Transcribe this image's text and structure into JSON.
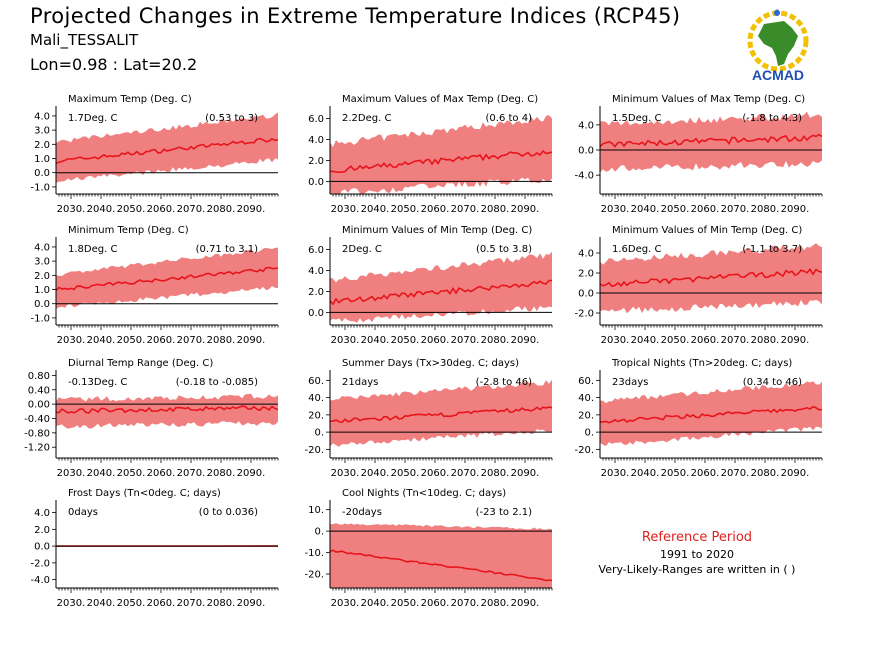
{
  "header": {
    "title": "Projected Changes in Extreme Temperature Indices (RCP45)",
    "station": "Mali_TESSALIT",
    "coords": "Lon=0.98 : Lat=20.2"
  },
  "logo": {
    "text": "ACMAD",
    "icon": "africa-map-logo"
  },
  "reference": {
    "title": "Reference Period",
    "years": "1991 to 2020",
    "note": "Very-Likely-Ranges are written in ( )"
  },
  "colors": {
    "band": "#f08080",
    "line": "#e8141c",
    "zero": "#000000",
    "ref": "#e0201c"
  },
  "x_ticks": [
    "2030.",
    "2040.",
    "2050.",
    "2060.",
    "2070.",
    "2080.",
    "2090."
  ],
  "chart_data": [
    {
      "type": "area",
      "title": "Maximum Temp (Deg. C)",
      "value_label": "1.7Deg. C",
      "range_label": "(0.53 to 3)",
      "yticks": [
        "4.0",
        "3.0",
        "2.0",
        "1.0",
        "0.0",
        "-1.0"
      ],
      "ylim": [
        -1.5,
        4.7
      ],
      "x": [
        2025,
        2099
      ],
      "mean": [
        0.8,
        2.4
      ],
      "lower": [
        -0.4,
        1.1
      ],
      "upper": [
        2.0,
        3.9
      ],
      "noise": 0.35
    },
    {
      "type": "area",
      "title": "Maximum Values of Max Temp (Deg. C)",
      "value_label": "2.2Deg. C",
      "range_label": "(0.6 to 4)",
      "yticks": [
        "6.0",
        "4.0",
        "2.0",
        "0.0"
      ],
      "ylim": [
        -1.2,
        7.2
      ],
      "x": [
        2025,
        2099
      ],
      "mean": [
        1.0,
        2.9
      ],
      "lower": [
        -0.8,
        0.6
      ],
      "upper": [
        3.2,
        5.8
      ],
      "noise": 0.7
    },
    {
      "type": "area",
      "title": "Minimum Values of Max Temp (Deg. C)",
      "value_label": "1.5Deg. C",
      "range_label": "(-1.8 to 4.3)",
      "yticks": [
        "4.0",
        "0.0",
        "-4.0"
      ],
      "ylim": [
        -7,
        7
      ],
      "x": [
        2025,
        2099
      ],
      "mean": [
        0.8,
        2.0
      ],
      "lower": [
        -2.5,
        -1.5
      ],
      "upper": [
        3.5,
        5.0
      ],
      "noise": 1.2
    },
    {
      "type": "area",
      "title": "Minimum Temp (Deg. C)",
      "value_label": "1.8Deg. C",
      "range_label": "(0.71 to 3.1)",
      "yticks": [
        "4.0",
        "3.0",
        "2.0",
        "1.0",
        "0.0",
        "-1.0"
      ],
      "ylim": [
        -1.5,
        4.7
      ],
      "x": [
        2025,
        2099
      ],
      "mean": [
        1.0,
        2.5
      ],
      "lower": [
        -0.1,
        1.3
      ],
      "upper": [
        1.9,
        3.8
      ],
      "noise": 0.3
    },
    {
      "type": "area",
      "title": "Minimum Values of Min Temp (Deg. C)",
      "value_label": "2Deg. C",
      "range_label": "(0.5 to 3.8)",
      "yticks": [
        "6.0",
        "4.0",
        "2.0",
        "0.0"
      ],
      "ylim": [
        -1.2,
        7.2
      ],
      "x": [
        2025,
        2099
      ],
      "mean": [
        1.0,
        2.9
      ],
      "lower": [
        -0.6,
        0.8
      ],
      "upper": [
        2.8,
        5.2
      ],
      "noise": 0.6
    },
    {
      "type": "area",
      "title": "Minimum Values of Min Temp (Deg. C)",
      "value_label": "1.6Deg. C",
      "range_label": "(-1.1 to 3.7)",
      "yticks": [
        "4.0",
        "2.0",
        "0.0",
        "-2.0"
      ],
      "ylim": [
        -3.2,
        5.6
      ],
      "x": [
        2025,
        2099
      ],
      "mean": [
        0.8,
        2.2
      ],
      "lower": [
        -1.5,
        -0.6
      ],
      "upper": [
        2.8,
        4.4
      ],
      "noise": 0.7
    },
    {
      "type": "area",
      "title": "Diurnal Temp Range (Deg. C)",
      "value_label": "-0.13Deg. C",
      "range_label": "(-0.18 to -0.085)",
      "yticks": [
        "0.80",
        "0.40",
        "0.00",
        "-0.40",
        "-0.80",
        "-1.20"
      ],
      "ylim": [
        -1.5,
        0.95
      ],
      "x": [
        2025,
        2099
      ],
      "mean": [
        -0.2,
        -0.1
      ],
      "lower": [
        -0.55,
        -0.45
      ],
      "upper": [
        0.05,
        0.15
      ],
      "noise": 0.15
    },
    {
      "type": "area",
      "title": "Summer Days (Tx>30deg. C; days)",
      "value_label": "21days",
      "range_label": "(-2.8 to 46)",
      "yticks": [
        "60.",
        "40.",
        "20.",
        "0.",
        "-20."
      ],
      "ylim": [
        -30,
        72
      ],
      "x": [
        2025,
        2099
      ],
      "mean": [
        12,
        28
      ],
      "lower": [
        -12,
        5
      ],
      "upper": [
        35,
        55
      ],
      "noise": 6
    },
    {
      "type": "area",
      "title": "Tropical Nights (Tn>20deg. C; days)",
      "value_label": "23days",
      "range_label": "(0.34 to 46)",
      "yticks": [
        "60.",
        "40.",
        "20.",
        "0.",
        "-20."
      ],
      "ylim": [
        -30,
        72
      ],
      "x": [
        2025,
        2099
      ],
      "mean": [
        12,
        28
      ],
      "lower": [
        -12,
        8
      ],
      "upper": [
        33,
        55
      ],
      "noise": 6
    },
    {
      "type": "area",
      "title": "Frost Days (Tn<0deg. C; days)",
      "value_label": "0days",
      "range_label": "(0 to 0.036)",
      "yticks": [
        "4.0",
        "2.0",
        "0.0",
        "-2.0",
        "-4.0"
      ],
      "ylim": [
        -5,
        5.5
      ],
      "x": [
        2025,
        2099
      ],
      "mean": [
        0,
        0
      ],
      "lower": [
        0,
        0
      ],
      "upper": [
        0,
        0.1
      ],
      "noise": 0
    },
    {
      "type": "area",
      "title": "Cool Nights (Tn<10deg. C; days)",
      "value_label": "-20days",
      "range_label": "(-23 to 2.1)",
      "yticks": [
        "10.",
        "0.",
        "-10.",
        "-20."
      ],
      "ylim": [
        -26.5,
        14.5
      ],
      "x": [
        2025,
        2099
      ],
      "mean": [
        -9,
        -23
      ],
      "lower": [
        -26.5,
        -26.5
      ],
      "upper": [
        3,
        0.5
      ],
      "noise": 1
    }
  ]
}
